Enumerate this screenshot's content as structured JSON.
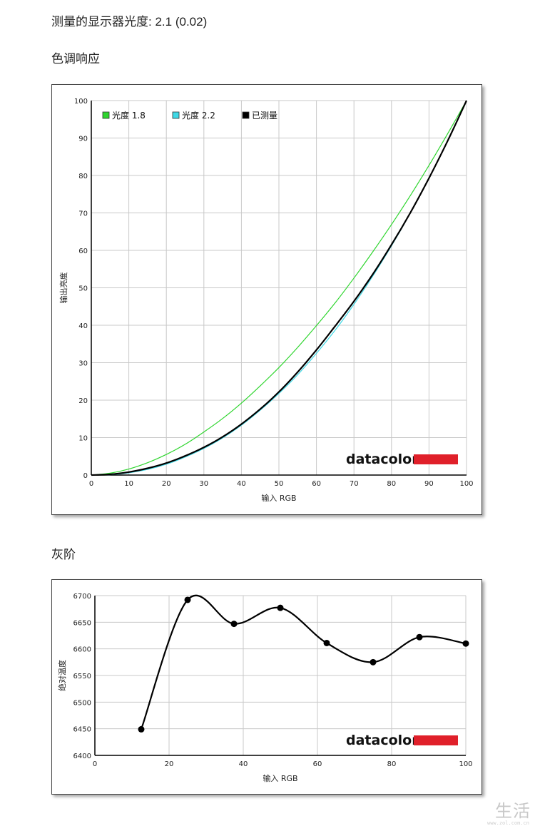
{
  "header": {
    "measured_label": "测量的显示器光度:",
    "measured_value": "2.1 (0.02)"
  },
  "sections": {
    "tone_title": "色调响应",
    "gray_title": "灰阶"
  },
  "brand": {
    "text": "datacolor",
    "bar_color": "#e0202a"
  },
  "watermark": {
    "text": "生活",
    "sub": "www.zol.com.cn"
  },
  "chart_data": [
    {
      "type": "line",
      "title": "",
      "xlabel": "输入 RGB",
      "ylabel": "输出亮度",
      "xlim": [
        0,
        100
      ],
      "ylim": [
        0,
        100
      ],
      "xticks": [
        0,
        10,
        20,
        30,
        40,
        50,
        60,
        70,
        80,
        90,
        100
      ],
      "yticks": [
        0,
        10,
        20,
        30,
        40,
        50,
        60,
        70,
        80,
        90,
        100
      ],
      "grid": true,
      "legend": "top-left",
      "series": [
        {
          "name": "光度 1.8",
          "color": "#2ed52e",
          "width": 1.2,
          "gamma": 1.8,
          "x": [
            0,
            5,
            10,
            15,
            20,
            25,
            30,
            35,
            40,
            45,
            50,
            55,
            60,
            65,
            70,
            75,
            80,
            85,
            90,
            95,
            100
          ],
          "y": [
            0,
            0.5,
            1.6,
            3.3,
            5.5,
            8.2,
            11.5,
            15.1,
            19.2,
            23.8,
            28.7,
            34.1,
            39.9,
            46.0,
            52.6,
            59.6,
            66.9,
            74.6,
            82.7,
            91.2,
            100
          ]
        },
        {
          "name": "光度 2.2",
          "color": "#3fd9e6",
          "width": 1.2,
          "gamma": 2.2,
          "x": [
            0,
            5,
            10,
            15,
            20,
            25,
            30,
            35,
            40,
            45,
            50,
            55,
            60,
            65,
            70,
            75,
            80,
            85,
            90,
            95,
            100
          ],
          "y": [
            0,
            0.1,
            0.6,
            1.5,
            2.9,
            4.8,
            7.1,
            9.9,
            13.3,
            17.3,
            21.8,
            26.8,
            32.5,
            38.7,
            45.6,
            53.1,
            61.2,
            69.9,
            79.3,
            89.3,
            100
          ]
        },
        {
          "name": "已测量",
          "color": "#000000",
          "width": 2.2,
          "x": [
            0,
            5,
            10,
            15,
            20,
            25,
            30,
            35,
            40,
            45,
            50,
            55,
            60,
            65,
            70,
            75,
            80,
            85,
            90,
            95,
            100
          ],
          "y": [
            0,
            0.2,
            0.8,
            1.8,
            3.2,
            5.1,
            7.4,
            10.2,
            13.6,
            17.6,
            22.2,
            27.5,
            33.4,
            39.8,
            46.4,
            53.6,
            61.5,
            70.0,
            79.3,
            89.3,
            100
          ]
        }
      ]
    },
    {
      "type": "line",
      "title": "",
      "xlabel": "输入 RGB",
      "ylabel": "绝对温度",
      "xlim": [
        0,
        100
      ],
      "ylim": [
        6400,
        6700
      ],
      "xticks": [
        0,
        20,
        40,
        60,
        80,
        100
      ],
      "yticks": [
        6400,
        6450,
        6500,
        6550,
        6600,
        6650,
        6700
      ],
      "grid": true,
      "series": [
        {
          "name": "",
          "color": "#000000",
          "width": 2.2,
          "x": [
            12.5,
            25,
            37.5,
            50,
            62.5,
            75,
            87.5,
            100
          ],
          "y": [
            6449,
            6692,
            6647,
            6677,
            6611,
            6575,
            6622,
            6610
          ]
        }
      ]
    }
  ]
}
